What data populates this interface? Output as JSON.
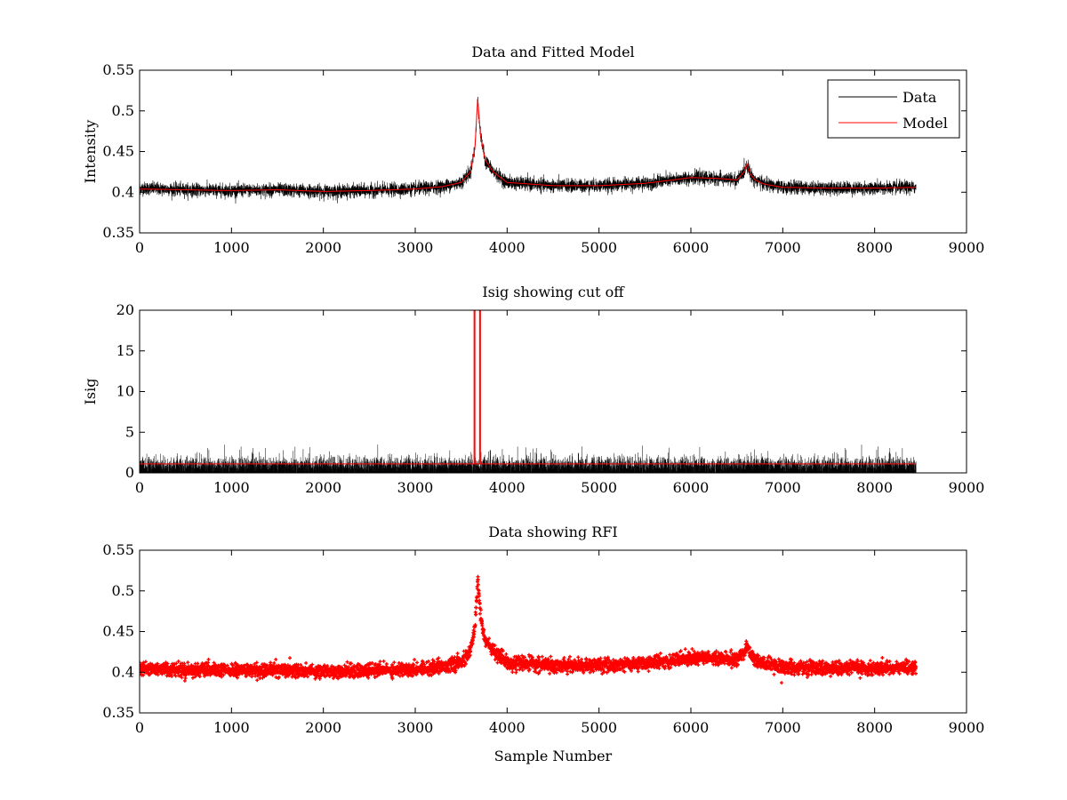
{
  "figure_title": "",
  "chart_data": [
    {
      "type": "line",
      "title": "Data and Fitted Model",
      "xlabel": "",
      "ylabel": "Intensity",
      "xlim": [
        0,
        9000
      ],
      "ylim": [
        0.35,
        0.55
      ],
      "xticks": [
        0,
        1000,
        2000,
        3000,
        4000,
        5000,
        6000,
        7000,
        8000,
        9000
      ],
      "yticks": [
        0.35,
        0.4,
        0.45,
        0.5,
        0.55
      ],
      "ytick_labels": [
        "0.35",
        "0.4",
        "0.45",
        "0.5",
        "0.55"
      ],
      "legend": {
        "placement": "top-right",
        "entries": [
          {
            "name": "Data",
            "color": "#000000"
          },
          {
            "name": "Model",
            "color": "#ff0000"
          }
        ]
      },
      "series": [
        {
          "name": "Data",
          "color": "#000000",
          "style": "line",
          "noise": 0.004,
          "x": [
            0,
            500,
            1000,
            1500,
            2000,
            2500,
            3000,
            3300,
            3500,
            3600,
            3650,
            3680,
            3710,
            3760,
            3850,
            4000,
            4500,
            5000,
            5500,
            5800,
            6000,
            6300,
            6500,
            6580,
            6610,
            6650,
            6700,
            6800,
            7000,
            7500,
            8000,
            8450
          ],
          "y": [
            0.405,
            0.403,
            0.402,
            0.403,
            0.401,
            0.402,
            0.404,
            0.407,
            0.412,
            0.425,
            0.455,
            0.515,
            0.47,
            0.44,
            0.425,
            0.412,
            0.408,
            0.408,
            0.411,
            0.415,
            0.418,
            0.417,
            0.415,
            0.425,
            0.435,
            0.422,
            0.415,
            0.41,
            0.406,
            0.405,
            0.405,
            0.406
          ]
        },
        {
          "name": "Model",
          "color": "#ff0000",
          "style": "line",
          "noise": 0,
          "x": [
            0,
            500,
            1000,
            1500,
            2000,
            2500,
            3000,
            3300,
            3500,
            3600,
            3650,
            3680,
            3710,
            3760,
            3850,
            4000,
            4500,
            5000,
            5500,
            5800,
            6000,
            6300,
            6500,
            6580,
            6610,
            6650,
            6700,
            6800,
            7000,
            7500,
            8000,
            8450
          ],
          "y": [
            0.404,
            0.403,
            0.402,
            0.403,
            0.401,
            0.402,
            0.404,
            0.407,
            0.412,
            0.425,
            0.455,
            0.515,
            0.47,
            0.44,
            0.425,
            0.412,
            0.408,
            0.408,
            0.411,
            0.415,
            0.418,
            0.417,
            0.415,
            0.425,
            0.435,
            0.422,
            0.415,
            0.41,
            0.406,
            0.405,
            0.405,
            0.406
          ]
        }
      ]
    },
    {
      "type": "line",
      "title": "Isig showing cut off",
      "xlabel": "",
      "ylabel": "Isig",
      "xlim": [
        0,
        9000
      ],
      "ylim": [
        0,
        20
      ],
      "xticks": [
        0,
        1000,
        2000,
        3000,
        4000,
        5000,
        6000,
        7000,
        8000,
        9000
      ],
      "yticks": [
        0,
        5,
        10,
        15,
        20
      ],
      "ytick_labels": [
        "0",
        "5",
        "10",
        "15",
        "20"
      ],
      "series": [
        {
          "name": "Isig",
          "color": "#000000",
          "style": "spikes",
          "range": [
            0,
            8450
          ],
          "base": 1.0,
          "spread": 0.9,
          "max_spike": 3.5
        },
        {
          "name": "Cut off",
          "color": "#ff0000",
          "style": "line",
          "noise": 0,
          "x": [
            0,
            3640,
            3640,
            3650,
            3650,
            3700,
            3700,
            3710,
            3710,
            8450
          ],
          "y": [
            1.1,
            1.1,
            20,
            20,
            1.1,
            1.1,
            20,
            20,
            1.1,
            1.1
          ]
        }
      ]
    },
    {
      "type": "scatter",
      "title": "Data showing RFI",
      "xlabel": "Sample Number",
      "ylabel": "",
      "xlim": [
        0,
        9000
      ],
      "ylim": [
        0.35,
        0.55
      ],
      "xticks": [
        0,
        1000,
        2000,
        3000,
        4000,
        5000,
        6000,
        7000,
        8000,
        9000
      ],
      "yticks": [
        0.35,
        0.4,
        0.45,
        0.5,
        0.55
      ],
      "ytick_labels": [
        "0.35",
        "0.4",
        "0.45",
        "0.5",
        "0.55"
      ],
      "series": [
        {
          "name": "Data",
          "color": "#ff0000",
          "style": "markers",
          "noise": 0.004,
          "x": [
            0,
            500,
            1000,
            1500,
            2000,
            2500,
            3000,
            3300,
            3500,
            3600,
            3650,
            3680,
            3710,
            3760,
            3850,
            4000,
            4500,
            5000,
            5500,
            5800,
            6000,
            6300,
            6500,
            6580,
            6610,
            6650,
            6700,
            6800,
            7000,
            7500,
            8000,
            8450
          ],
          "y": [
            0.405,
            0.403,
            0.402,
            0.403,
            0.401,
            0.402,
            0.404,
            0.407,
            0.412,
            0.425,
            0.455,
            0.515,
            0.47,
            0.44,
            0.425,
            0.412,
            0.408,
            0.408,
            0.411,
            0.415,
            0.418,
            0.417,
            0.415,
            0.425,
            0.435,
            0.422,
            0.415,
            0.41,
            0.406,
            0.405,
            0.405,
            0.406
          ]
        }
      ]
    }
  ]
}
